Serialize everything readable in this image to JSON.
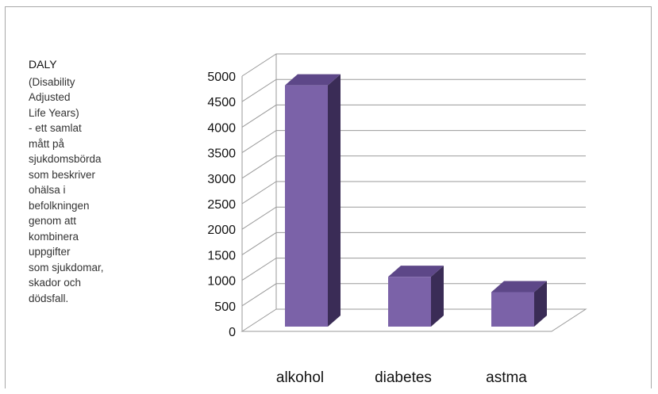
{
  "sidebar": {
    "heading": "DALY",
    "lines": [
      "(Disability",
      "Adjusted",
      "Life Years)",
      "- ett samlat",
      "mått på",
      "sjukdomsbörda",
      "som beskriver",
      "ohälsa i",
      "befolkningen",
      "genom att",
      "kombinera",
      "uppgifter",
      "som sjukdomar,",
      "skador och",
      "dödsfall."
    ]
  },
  "chart_data": {
    "type": "bar",
    "categories": [
      "alkohol",
      "diabetes",
      "astma"
    ],
    "values": [
      4850,
      1100,
      800
    ],
    "ylim": [
      0,
      5000
    ],
    "yticks": [
      0,
      500,
      1000,
      1500,
      2000,
      2500,
      3000,
      3500,
      4000,
      4500,
      5000
    ],
    "title": "",
    "xlabel": "",
    "ylabel": "",
    "grid": true,
    "three_d": true,
    "colors": {
      "bar_front": "#7b62a8",
      "bar_side": "#3a2c56",
      "bar_top": "#5d4788",
      "grid": "#9a9a9a",
      "axis_text": "#111111"
    }
  }
}
